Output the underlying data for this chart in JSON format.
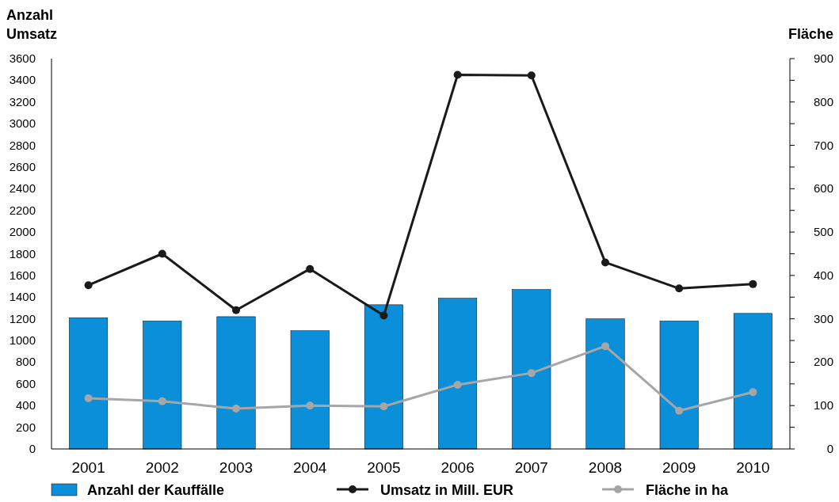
{
  "chart_data": {
    "type": "bar",
    "ylabel": "Anzahl\nUmsatz",
    "y2label": "Fläche",
    "categories": [
      "2001",
      "2002",
      "2003",
      "2004",
      "2005",
      "2006",
      "2007",
      "2008",
      "2009",
      "2010"
    ],
    "series": [
      {
        "name": "Anzahl der Kauffälle",
        "color": "#0a8fd8",
        "values": [
          1210,
          1180,
          1220,
          1090,
          1330,
          1390,
          1470,
          1200,
          1180,
          1250
        ]
      },
      {
        "name": "Umsatz in Mill. EUR",
        "type": "line",
        "color": "#1a1a1a",
        "values": [
          1510,
          1800,
          1280,
          1660,
          1230,
          3450,
          3445,
          1720,
          1480,
          1520
        ]
      },
      {
        "name": "Fläche in ha",
        "type": "line",
        "axis": "y2",
        "color": "#a6a6a6",
        "values": [
          117,
          110,
          93,
          100,
          98,
          148,
          175,
          237,
          88,
          131
        ]
      }
    ],
    "ylim": [
      0,
      3600
    ],
    "yticks": [
      0,
      200,
      400,
      600,
      800,
      1000,
      1200,
      1400,
      1600,
      1800,
      2000,
      2200,
      2400,
      2600,
      2800,
      3000,
      3200,
      3400,
      3600
    ],
    "y2lim": [
      0,
      900
    ],
    "y2ticks": [
      0,
      {
        "value": 50,
        "label": null
      },
      100,
      {
        "value": 150,
        "label": null
      },
      200,
      {
        "value": 250,
        "label": null
      },
      300,
      {
        "value": 350,
        "label": null
      },
      400,
      {
        "value": 450,
        "label": null
      },
      500,
      {
        "value": 550,
        "label": null
      },
      600,
      {
        "value": 650,
        "label": null
      },
      700,
      {
        "value": 750,
        "label": null
      },
      800,
      {
        "value": 850,
        "label": null
      },
      900
    ],
    "marker": "circle",
    "legend": "bottom",
    "grid": false
  }
}
